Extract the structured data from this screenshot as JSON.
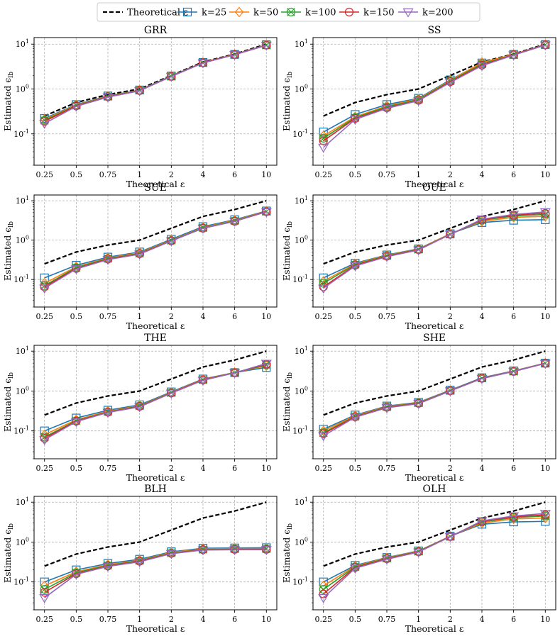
{
  "legend": {
    "entries": [
      {
        "label": "Theoretical ε",
        "color": "#000000",
        "marker": "none",
        "dashed": true
      },
      {
        "label": "k=25",
        "color": "#1f77b4",
        "marker": "square"
      },
      {
        "label": "k=50",
        "color": "#ff7f0e",
        "marker": "diamond"
      },
      {
        "label": "k=100",
        "color": "#2ca02c",
        "marker": "x-circle"
      },
      {
        "label": "k=150",
        "color": "#d62728",
        "marker": "circle"
      },
      {
        "label": "k=200",
        "color": "#9467bd",
        "marker": "triangle-down"
      }
    ]
  },
  "chart_data": [
    {
      "type": "line",
      "title": "GRR",
      "xlabel": "Theoretical ε",
      "ylabel": "Estimated ε_lb",
      "yscale": "log",
      "ylim": [
        0.02,
        14
      ],
      "categories": [
        "0.25",
        "0.5",
        "0.75",
        "1",
        "2",
        "4",
        "6",
        "10"
      ],
      "series": [
        {
          "name": "Theoretical ε",
          "values": [
            0.25,
            0.5,
            0.75,
            1,
            2,
            4,
            6,
            10
          ]
        },
        {
          "name": "k=25",
          "values": [
            0.22,
            0.45,
            0.7,
            0.95,
            1.95,
            3.9,
            5.9,
            9.7
          ]
        },
        {
          "name": "k=50",
          "values": [
            0.21,
            0.44,
            0.69,
            0.94,
            1.93,
            3.9,
            5.9,
            9.6
          ]
        },
        {
          "name": "k=100",
          "values": [
            0.2,
            0.43,
            0.68,
            0.93,
            1.92,
            3.85,
            5.85,
            9.5
          ]
        },
        {
          "name": "k=150",
          "values": [
            0.19,
            0.42,
            0.67,
            0.92,
            1.9,
            3.85,
            5.85,
            9.5
          ]
        },
        {
          "name": "k=200",
          "values": [
            0.17,
            0.41,
            0.66,
            0.91,
            1.9,
            3.8,
            5.8,
            9.4
          ]
        }
      ]
    },
    {
      "type": "line",
      "title": "SS",
      "xlabel": "Theoretical ε",
      "ylabel": "Estimated ε_lb",
      "yscale": "log",
      "ylim": [
        0.02,
        14
      ],
      "categories": [
        "0.25",
        "0.5",
        "0.75",
        "1",
        "2",
        "4",
        "6",
        "10"
      ],
      "series": [
        {
          "name": "Theoretical ε",
          "values": [
            0.25,
            0.5,
            0.75,
            1,
            2,
            4,
            6,
            10
          ]
        },
        {
          "name": "k=25",
          "values": [
            0.11,
            0.27,
            0.45,
            0.62,
            1.6,
            3.8,
            5.9,
            9.8
          ]
        },
        {
          "name": "k=50",
          "values": [
            0.09,
            0.24,
            0.42,
            0.6,
            1.55,
            3.9,
            5.9,
            9.7
          ]
        },
        {
          "name": "k=100",
          "values": [
            0.08,
            0.23,
            0.4,
            0.58,
            1.5,
            3.6,
            5.8,
            9.6
          ]
        },
        {
          "name": "k=150",
          "values": [
            0.07,
            0.22,
            0.38,
            0.56,
            1.45,
            3.4,
            5.8,
            9.6
          ]
        },
        {
          "name": "k=200",
          "values": [
            0.05,
            0.21,
            0.37,
            0.55,
            1.4,
            3.3,
            5.7,
            9.5
          ]
        }
      ]
    },
    {
      "type": "line",
      "title": "SUE",
      "xlabel": "Theoretical ε",
      "ylabel": "Estimated ε_lb",
      "yscale": "log",
      "ylim": [
        0.02,
        14
      ],
      "categories": [
        "0.25",
        "0.5",
        "0.75",
        "1",
        "2",
        "4",
        "6",
        "10"
      ],
      "series": [
        {
          "name": "Theoretical ε",
          "values": [
            0.25,
            0.5,
            0.75,
            1,
            2,
            4,
            6,
            10
          ]
        },
        {
          "name": "k=25",
          "values": [
            0.11,
            0.23,
            0.37,
            0.5,
            1.05,
            2.2,
            3.3,
            5.5
          ]
        },
        {
          "name": "k=50",
          "values": [
            0.08,
            0.21,
            0.35,
            0.48,
            1.0,
            2.1,
            3.2,
            5.4
          ]
        },
        {
          "name": "k=100",
          "values": [
            0.07,
            0.2,
            0.34,
            0.46,
            0.98,
            2.05,
            3.1,
            5.3
          ]
        },
        {
          "name": "k=150",
          "values": [
            0.065,
            0.19,
            0.33,
            0.45,
            0.96,
            2.0,
            3.0,
            5.3
          ]
        },
        {
          "name": "k=200",
          "values": [
            0.06,
            0.185,
            0.32,
            0.44,
            0.95,
            2.0,
            3.0,
            5.2
          ]
        }
      ]
    },
    {
      "type": "line",
      "title": "OUE",
      "xlabel": "Theoretical ε",
      "ylabel": "Estimated ε_lb",
      "yscale": "log",
      "ylim": [
        0.02,
        14
      ],
      "categories": [
        "0.25",
        "0.5",
        "0.75",
        "1",
        "2",
        "4",
        "6",
        "10"
      ],
      "series": [
        {
          "name": "Theoretical ε",
          "values": [
            0.25,
            0.5,
            0.75,
            1,
            2,
            4,
            6,
            10
          ]
        },
        {
          "name": "k=25",
          "values": [
            0.11,
            0.26,
            0.42,
            0.6,
            1.45,
            2.8,
            3.2,
            3.3
          ]
        },
        {
          "name": "k=50",
          "values": [
            0.09,
            0.25,
            0.41,
            0.59,
            1.45,
            3.0,
            3.8,
            4.0
          ]
        },
        {
          "name": "k=100",
          "values": [
            0.08,
            0.24,
            0.4,
            0.58,
            1.4,
            3.2,
            4.1,
            4.5
          ]
        },
        {
          "name": "k=150",
          "values": [
            0.065,
            0.23,
            0.39,
            0.57,
            1.4,
            3.3,
            4.3,
            4.8
          ]
        },
        {
          "name": "k=200",
          "values": [
            0.06,
            0.22,
            0.38,
            0.56,
            1.4,
            3.4,
            4.5,
            5.2
          ]
        }
      ]
    },
    {
      "type": "line",
      "title": "THE",
      "xlabel": "Theoretical ε",
      "ylabel": "Estimated ε_lb",
      "yscale": "log",
      "ylim": [
        0.02,
        14
      ],
      "categories": [
        "0.25",
        "0.5",
        "0.75",
        "1",
        "2",
        "4",
        "6",
        "10"
      ],
      "series": [
        {
          "name": "Theoretical ε",
          "values": [
            0.25,
            0.5,
            0.75,
            1,
            2,
            4,
            6,
            10
          ]
        },
        {
          "name": "k=25",
          "values": [
            0.1,
            0.21,
            0.33,
            0.45,
            0.95,
            2.0,
            2.9,
            3.9
          ]
        },
        {
          "name": "k=50",
          "values": [
            0.08,
            0.19,
            0.31,
            0.43,
            0.92,
            1.95,
            2.9,
            4.3
          ]
        },
        {
          "name": "k=100",
          "values": [
            0.07,
            0.18,
            0.3,
            0.42,
            0.9,
            1.9,
            2.9,
            4.5
          ]
        },
        {
          "name": "k=150",
          "values": [
            0.065,
            0.175,
            0.295,
            0.41,
            0.89,
            1.9,
            2.85,
            4.7
          ]
        },
        {
          "name": "k=200",
          "values": [
            0.06,
            0.17,
            0.29,
            0.4,
            0.88,
            1.85,
            2.85,
            4.9
          ]
        }
      ]
    },
    {
      "type": "line",
      "title": "SHE",
      "xlabel": "Theoretical ε",
      "ylabel": "Estimated ε_lb",
      "yscale": "log",
      "ylim": [
        0.02,
        14
      ],
      "categories": [
        "0.25",
        "0.5",
        "0.75",
        "1",
        "2",
        "4",
        "6",
        "10"
      ],
      "series": [
        {
          "name": "Theoretical ε",
          "values": [
            0.25,
            0.5,
            0.75,
            1,
            2,
            4,
            6,
            10
          ]
        },
        {
          "name": "k=25",
          "values": [
            0.11,
            0.25,
            0.42,
            0.52,
            1.05,
            2.15,
            3.2,
            5.0
          ]
        },
        {
          "name": "k=50",
          "values": [
            0.1,
            0.24,
            0.41,
            0.51,
            1.03,
            2.1,
            3.15,
            5.0
          ]
        },
        {
          "name": "k=100",
          "values": [
            0.09,
            0.23,
            0.4,
            0.5,
            1.02,
            2.1,
            3.1,
            5.0
          ]
        },
        {
          "name": "k=150",
          "values": [
            0.085,
            0.225,
            0.39,
            0.49,
            1.01,
            2.08,
            3.1,
            4.95
          ]
        },
        {
          "name": "k=200",
          "values": [
            0.075,
            0.22,
            0.38,
            0.48,
            1.0,
            2.05,
            3.1,
            4.9
          ]
        }
      ]
    },
    {
      "type": "line",
      "title": "BLH",
      "xlabel": "Theoretical ε",
      "ylabel": "Estimated ε_lb",
      "yscale": "log",
      "ylim": [
        0.02,
        14
      ],
      "categories": [
        "0.25",
        "0.5",
        "0.75",
        "1",
        "2",
        "4",
        "6",
        "10"
      ],
      "series": [
        {
          "name": "Theoretical ε",
          "values": [
            0.25,
            0.5,
            0.75,
            1,
            2,
            4,
            6,
            10
          ]
        },
        {
          "name": "k=25",
          "values": [
            0.1,
            0.2,
            0.29,
            0.37,
            0.57,
            0.7,
            0.71,
            0.72
          ]
        },
        {
          "name": "k=50",
          "values": [
            0.08,
            0.18,
            0.27,
            0.35,
            0.55,
            0.67,
            0.69,
            0.69
          ]
        },
        {
          "name": "k=100",
          "values": [
            0.065,
            0.17,
            0.26,
            0.34,
            0.53,
            0.65,
            0.67,
            0.67
          ]
        },
        {
          "name": "k=150",
          "values": [
            0.055,
            0.16,
            0.25,
            0.33,
            0.52,
            0.64,
            0.65,
            0.65
          ]
        },
        {
          "name": "k=200",
          "values": [
            0.04,
            0.155,
            0.245,
            0.32,
            0.51,
            0.63,
            0.64,
            0.64
          ]
        }
      ]
    },
    {
      "type": "line",
      "title": "OLH",
      "xlabel": "Theoretical ε",
      "ylabel": "Estimated ε_lb",
      "yscale": "log",
      "ylim": [
        0.02,
        14
      ],
      "categories": [
        "0.25",
        "0.5",
        "0.75",
        "1",
        "2",
        "4",
        "6",
        "10"
      ],
      "series": [
        {
          "name": "Theoretical ε",
          "values": [
            0.25,
            0.5,
            0.75,
            1,
            2,
            4,
            6,
            10
          ]
        },
        {
          "name": "k=25",
          "values": [
            0.1,
            0.26,
            0.41,
            0.6,
            1.4,
            2.8,
            3.2,
            3.3
          ]
        },
        {
          "name": "k=50",
          "values": [
            0.08,
            0.25,
            0.4,
            0.59,
            1.4,
            3.0,
            3.8,
            4.0
          ]
        },
        {
          "name": "k=100",
          "values": [
            0.065,
            0.24,
            0.39,
            0.58,
            1.38,
            3.2,
            4.1,
            4.5
          ]
        },
        {
          "name": "k=150",
          "values": [
            0.05,
            0.23,
            0.38,
            0.57,
            1.37,
            3.3,
            4.3,
            4.8
          ]
        },
        {
          "name": "k=200",
          "values": [
            0.04,
            0.22,
            0.37,
            0.56,
            1.36,
            3.4,
            4.5,
            5.2
          ]
        }
      ]
    }
  ]
}
